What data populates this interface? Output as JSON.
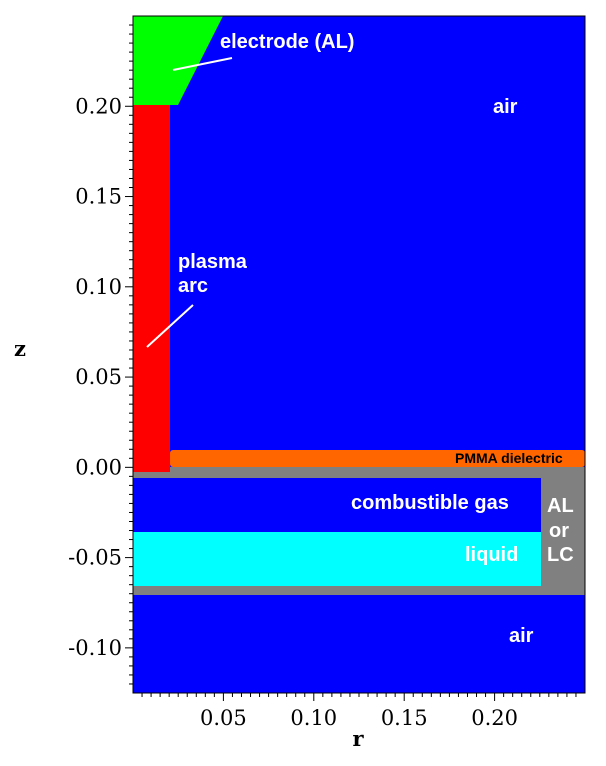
{
  "colors": {
    "air": "#0000ff",
    "electrode": "#00ff00",
    "plasma": "#ff0000",
    "dielectric": "#ff6600",
    "wall": "#808080",
    "liquid": "#00ffff",
    "label_text": "#ffffff",
    "dielectric_text": "#000000"
  },
  "axes": {
    "xlabel": "r",
    "ylabel": "z",
    "x_range": [
      0,
      0.25
    ],
    "y_range": [
      -0.125,
      0.25
    ],
    "x_ticks": [
      {
        "value": 0.05,
        "label": "0.05"
      },
      {
        "value": 0.1,
        "label": "0.10"
      },
      {
        "value": 0.15,
        "label": "0.15"
      },
      {
        "value": 0.2,
        "label": "0.20"
      }
    ],
    "y_ticks": [
      {
        "value": 0.2,
        "label": "0.20"
      },
      {
        "value": 0.15,
        "label": "0.15"
      },
      {
        "value": 0.1,
        "label": "0.10"
      },
      {
        "value": 0.05,
        "label": "0.05"
      },
      {
        "value": 0.0,
        "label": "0.00"
      },
      {
        "value": -0.05,
        "label": "-0.05"
      },
      {
        "value": -0.1,
        "label": "-0.10"
      }
    ]
  },
  "regions": {
    "electrode_label": "electrode (AL)",
    "air_top_label": "air",
    "plasma_label_line1": "plasma",
    "plasma_label_line2": "arc",
    "dielectric_label": "PMMA dielectric",
    "gas_label": "combustible gas",
    "liquid_label": "liquid",
    "wall_label_line1": "AL",
    "wall_label_line2": "or",
    "wall_label_line3": "LC",
    "air_bottom_label": "air"
  }
}
